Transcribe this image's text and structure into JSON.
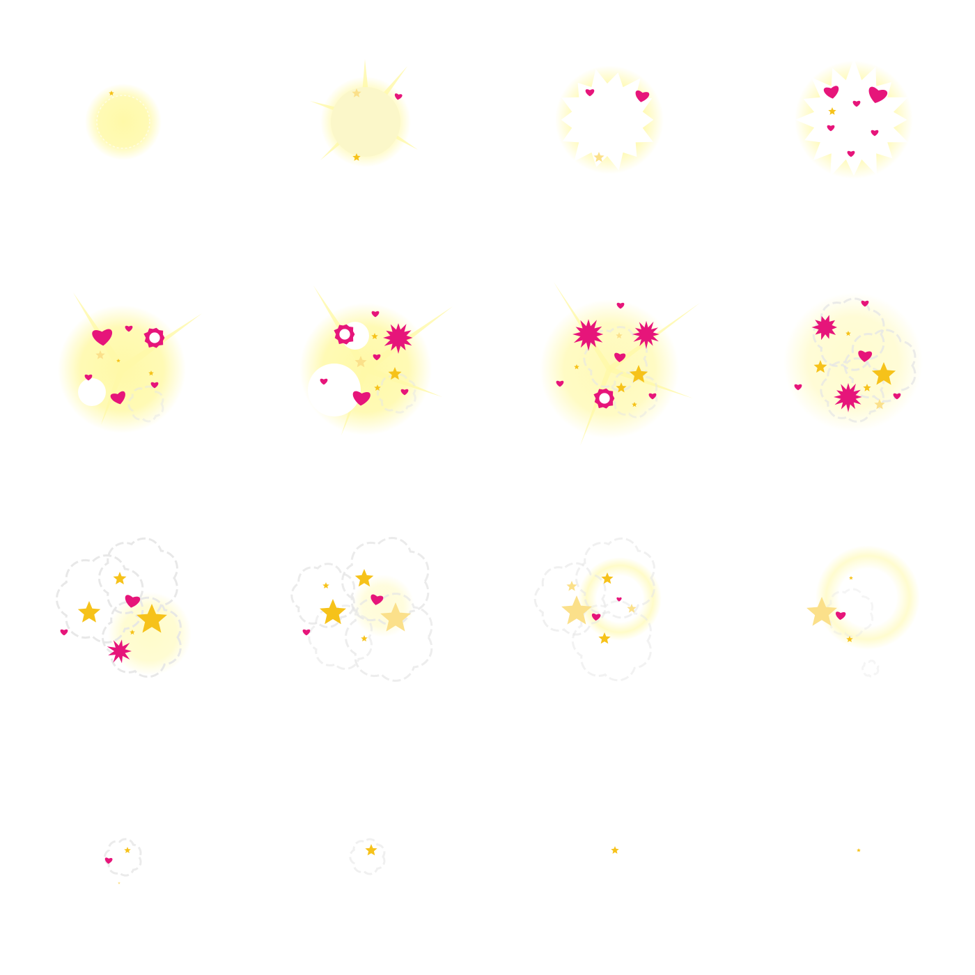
{
  "sprite_sheet": {
    "columns": 4,
    "rows": 4,
    "palette": {
      "background": "#ffffff",
      "glow": "#fff9a8",
      "glow_pale": "#fbf7c9",
      "flash": "#ffffff",
      "heart": "#e6157a",
      "star": "#f6c21a",
      "star_pale": "#fbe08a",
      "smoke_outline": "#e6e6e6"
    },
    "frames": [
      {
        "name": "frame-01",
        "stage": "glow-orb"
      },
      {
        "name": "frame-02",
        "stage": "glow-rays"
      },
      {
        "name": "frame-03",
        "stage": "flash-burst"
      },
      {
        "name": "frame-04",
        "stage": "flash-hearts"
      },
      {
        "name": "frame-05",
        "stage": "hearts-explode"
      },
      {
        "name": "frame-06",
        "stage": "hearts-sparks"
      },
      {
        "name": "frame-07",
        "stage": "sparks-spread"
      },
      {
        "name": "frame-08",
        "stage": "smoke-forming"
      },
      {
        "name": "frame-09",
        "stage": "smoke-stars"
      },
      {
        "name": "frame-10",
        "stage": "smoke-stars-fade"
      },
      {
        "name": "frame-11",
        "stage": "smoke-dissipate"
      },
      {
        "name": "frame-12",
        "stage": "smoke-faint"
      },
      {
        "name": "frame-13",
        "stage": "small-puff"
      },
      {
        "name": "frame-14",
        "stage": "tiny-puff"
      },
      {
        "name": "frame-15",
        "stage": "single-star"
      },
      {
        "name": "frame-16",
        "stage": "star-dot"
      }
    ]
  }
}
